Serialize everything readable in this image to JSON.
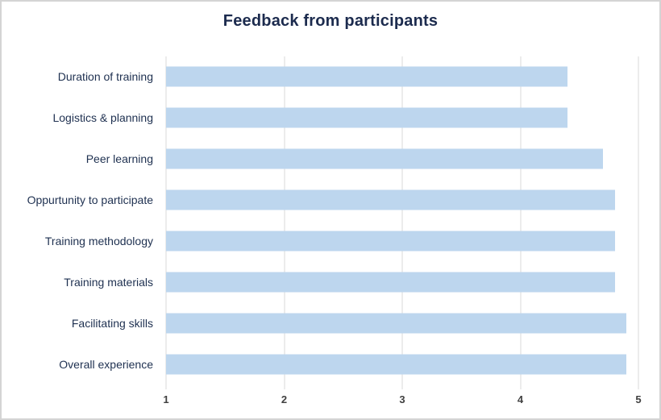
{
  "title": "Feedback from participants",
  "colors": {
    "background": "#ffffff",
    "canvas_border": "#d4d4d4",
    "title_text": "#1c2b4e",
    "label_text": "#1e3050",
    "tick_text": "#404040",
    "grid_line": "#d9d9d9",
    "bar_fill": "#bdd6ee"
  },
  "chart_data": {
    "type": "bar",
    "orientation": "horizontal",
    "title": "Feedback from participants",
    "categories": [
      "Duration of training",
      "Logistics & planning",
      "Peer learning",
      "Oppurtunity to participate",
      "Training methodology",
      "Training materials",
      "Facilitating skills",
      "Overall experience"
    ],
    "values": [
      4.4,
      4.4,
      4.7,
      4.8,
      4.8,
      4.8,
      4.9,
      4.9
    ],
    "xlabel": "",
    "ylabel": "",
    "xlim": [
      1,
      5
    ],
    "xticks": [
      1,
      2,
      3,
      4,
      5
    ],
    "grid": "vertical-only",
    "legend": "none",
    "bar_color": "#bdd6ee"
  }
}
